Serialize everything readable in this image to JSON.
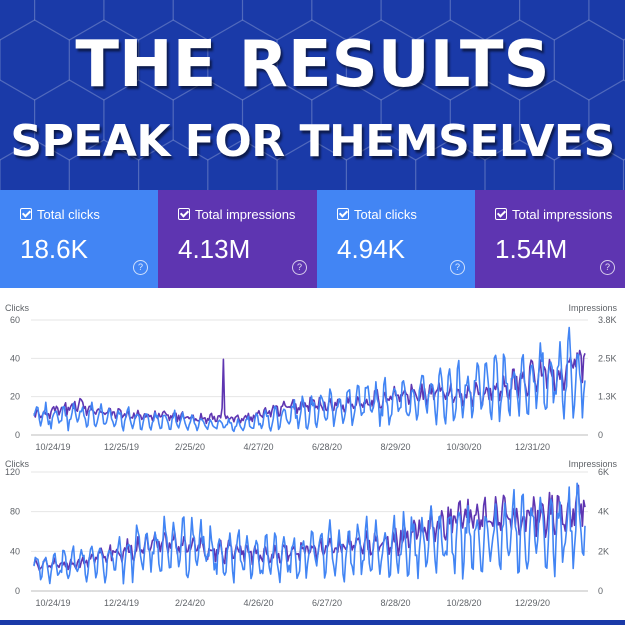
{
  "banner": {
    "line1": "THE RESULTS",
    "line2": "SPEAK FOR THEMSELVES"
  },
  "cards": [
    {
      "label": "Total clicks",
      "value": "18.6K",
      "color": "#4285f4"
    },
    {
      "label": "Total impressions",
      "value": "4.13M",
      "color": "#5e35b1"
    },
    {
      "label": "Total clicks",
      "value": "4.94K",
      "color": "#4285f4"
    },
    {
      "label": "Total impressions",
      "value": "1.54M",
      "color": "#5e35b1"
    }
  ],
  "colors": {
    "clicks": "#4285f4",
    "impressions": "#5e35b1",
    "banner": "#1a3aa8"
  },
  "chart_data": [
    {
      "type": "line",
      "left_axis_title": "Clicks",
      "right_axis_title": "Impressions",
      "y_ticks": [
        "0",
        "20",
        "40",
        "60"
      ],
      "y2_ticks": [
        "0",
        "1.3K",
        "2.5K",
        "3.8K"
      ],
      "ylim": [
        0,
        60
      ],
      "y2lim": [
        0,
        3800
      ],
      "x_ticks": [
        "10/24/19",
        "12/25/19",
        "2/25/20",
        "4/27/20",
        "6/28/20",
        "8/29/20",
        "10/30/20",
        "12/31/20"
      ],
      "grid": true,
      "series": [
        {
          "name": "Clicks",
          "axis": "left",
          "trend": [
            10,
            10,
            11,
            10,
            9,
            8,
            8,
            6,
            6,
            5,
            8,
            11,
            14,
            15,
            16,
            18,
            19,
            21,
            22,
            24,
            25,
            28,
            30,
            33,
            38
          ],
          "spike_index": -1
        },
        {
          "name": "Impressions",
          "axis": "right",
          "trend": [
            650,
            780,
            1000,
            780,
            650,
            650,
            620,
            560,
            560,
            500,
            720,
            900,
            1000,
            1000,
            1080,
            1180,
            1300,
            1350,
            1350,
            1350,
            1450,
            1750,
            2000,
            2000,
            2500
          ],
          "spike_index": 144,
          "spike_value": 2500
        }
      ]
    },
    {
      "type": "line",
      "left_axis_title": "Clicks",
      "right_axis_title": "Impressions",
      "y_ticks": [
        "0",
        "40",
        "80",
        "120"
      ],
      "y2_ticks": [
        "0",
        "2K",
        "4K",
        "6K"
      ],
      "ylim": [
        0,
        120
      ],
      "y2lim": [
        0,
        6000
      ],
      "x_ticks": [
        "10/24/19",
        "12/24/19",
        "2/24/20",
        "4/26/20",
        "6/27/20",
        "8/28/20",
        "10/28/20",
        "12/29/20"
      ],
      "grid": true,
      "series": [
        {
          "name": "Clicks",
          "axis": "left",
          "trend": [
            26,
            25,
            28,
            32,
            38,
            44,
            46,
            44,
            40,
            38,
            36,
            38,
            40,
            42,
            44,
            46,
            48,
            50,
            52,
            56,
            58,
            60,
            62,
            66,
            70
          ],
          "spike_index": -1
        },
        {
          "name": "Impressions",
          "axis": "right",
          "trend": [
            1300,
            1300,
            1450,
            1700,
            2000,
            2250,
            2350,
            2250,
            2000,
            1900,
            1800,
            1900,
            2100,
            2200,
            2300,
            2400,
            2600,
            3200,
            3500,
            3700,
            3800,
            3800,
            3900,
            4100,
            4400
          ],
          "spike_index": -1
        }
      ]
    }
  ]
}
